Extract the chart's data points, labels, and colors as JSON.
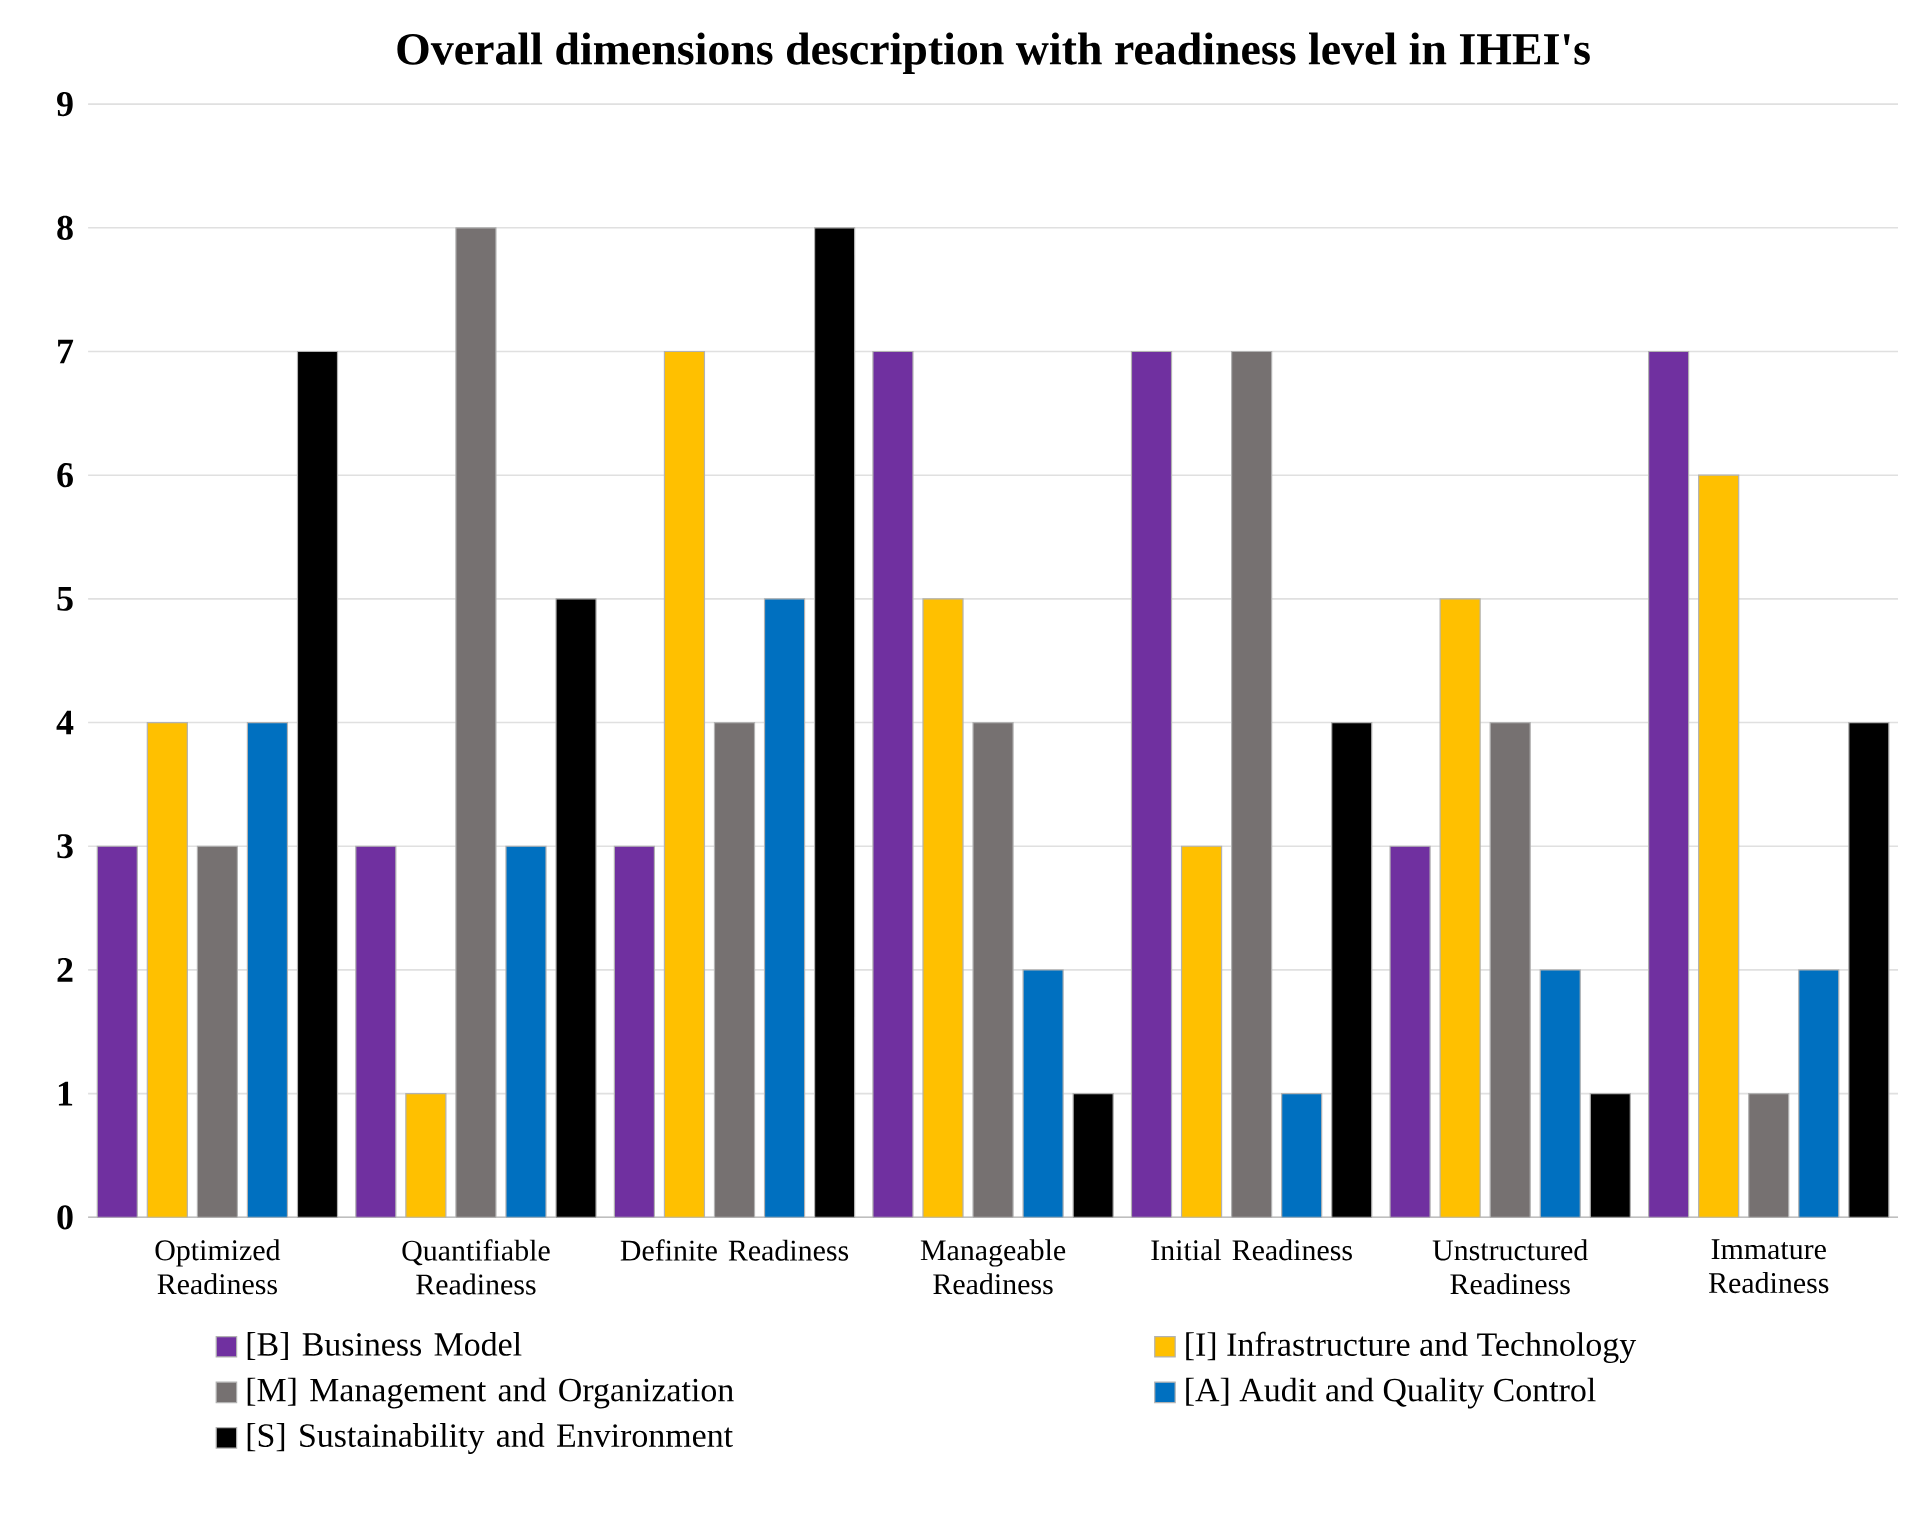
{
  "chart_data": {
    "type": "bar",
    "title": "Overall dimensions description with readiness level in IHEI's",
    "categories": [
      "Optimized Readiness",
      "Quantifiable Readiness",
      "Definite Readiness",
      "Manageable Readiness",
      "Initial Readiness",
      "Unstructured Readiness",
      "Immature Readiness"
    ],
    "series": [
      {
        "name": "[B] Business Model",
        "color": "#7030a0",
        "values": [
          3,
          3,
          3,
          7,
          7,
          3,
          7
        ]
      },
      {
        "name": "[I] Infrastructure and Technology",
        "color": "#ffc000",
        "values": [
          4,
          1,
          7,
          5,
          3,
          5,
          6
        ]
      },
      {
        "name": "[M] Management and Organization",
        "color": "#767171",
        "values": [
          3,
          8,
          4,
          4,
          7,
          4,
          1
        ]
      },
      {
        "name": "[A] Audit and Quality Control",
        "color": "#0070c0",
        "values": [
          4,
          3,
          5,
          2,
          1,
          2,
          2
        ]
      },
      {
        "name": "[S] Sustainability and Environment",
        "color": "#000000",
        "values": [
          7,
          5,
          8,
          1,
          4,
          1,
          4
        ]
      }
    ],
    "ylim": [
      0,
      9
    ],
    "yticks": [
      0,
      1,
      2,
      3,
      4,
      5,
      6,
      7,
      8,
      9
    ],
    "grid": "y",
    "legend": "bottom"
  }
}
